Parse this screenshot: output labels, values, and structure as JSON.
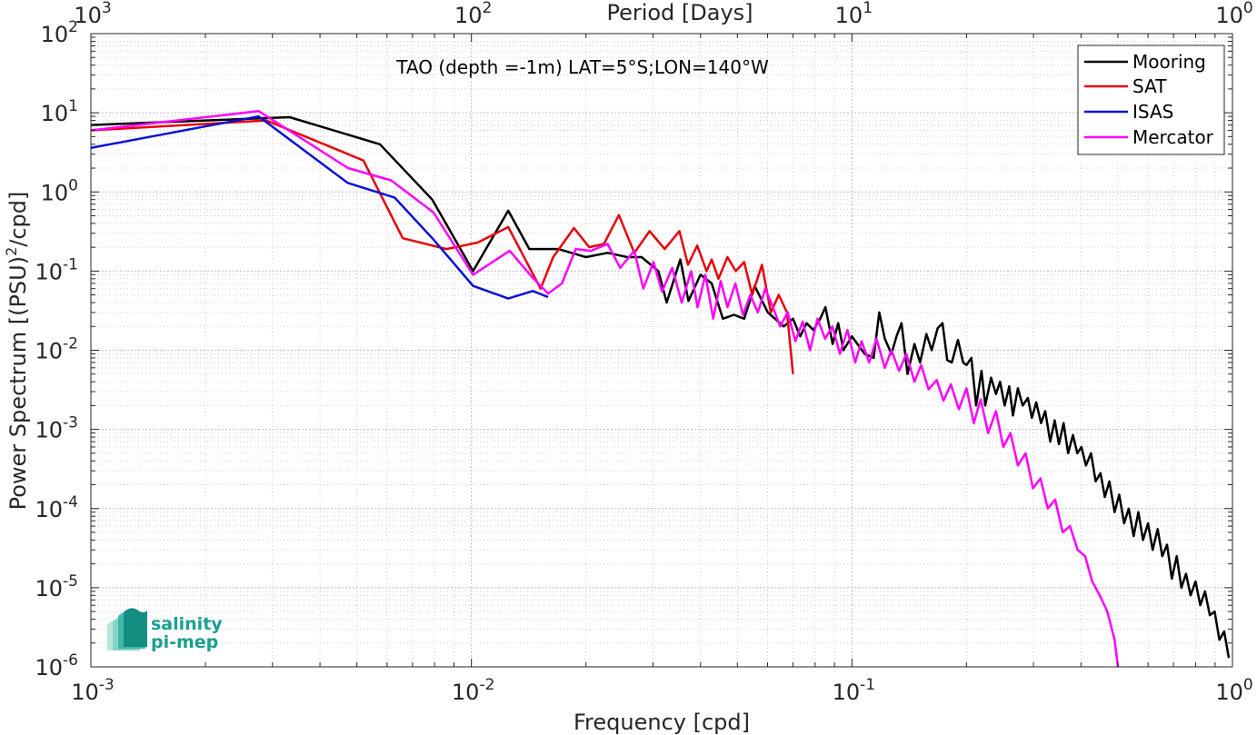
{
  "chart_data": {
    "type": "line",
    "title": "",
    "annotation": "TAO (depth =-1m) LAT=5°S;LON=140°W",
    "xlabel": "Frequency [cpd]",
    "ylabel": "Power Spectrum [(PSU)²/cpd]",
    "ylabel_parts": {
      "pre": "Power Spectrum [(PSU)",
      "sup": "2",
      "post": "/cpd]"
    },
    "top_xlabel": "Period [Days]",
    "xscale": "log",
    "yscale": "log",
    "xlim": [
      0.001,
      1
    ],
    "ylim": [
      1e-06,
      100
    ],
    "grid": true,
    "legend_position": "top-right",
    "x_ticks": [
      {
        "value": 0.001,
        "base": "10",
        "exp": "-3"
      },
      {
        "value": 0.01,
        "base": "10",
        "exp": "-2"
      },
      {
        "value": 0.1,
        "base": "10",
        "exp": "-1"
      },
      {
        "value": 1,
        "base": "10",
        "exp": "0"
      }
    ],
    "y_ticks": [
      {
        "value": 1e-06,
        "base": "10",
        "exp": "-6"
      },
      {
        "value": 1e-05,
        "base": "10",
        "exp": "-5"
      },
      {
        "value": 0.0001,
        "base": "10",
        "exp": "-4"
      },
      {
        "value": 0.001,
        "base": "10",
        "exp": "-3"
      },
      {
        "value": 0.01,
        "base": "10",
        "exp": "-2"
      },
      {
        "value": 0.1,
        "base": "10",
        "exp": "-1"
      },
      {
        "value": 1,
        "base": "10",
        "exp": "0"
      },
      {
        "value": 10,
        "base": "10",
        "exp": "1"
      },
      {
        "value": 100,
        "base": "10",
        "exp": "2"
      }
    ],
    "top_ticks": [
      {
        "period": 1000,
        "base": "10",
        "exp": "3"
      },
      {
        "period": 100,
        "base": "10",
        "exp": "2"
      },
      {
        "period": 10,
        "base": "10",
        "exp": "1"
      },
      {
        "period": 1,
        "base": "10",
        "exp": "0"
      }
    ],
    "series": [
      {
        "name": "Mooring",
        "color": "#000000",
        "x": [
          0.001,
          0.00333,
          0.00575,
          0.00789,
          0.0101,
          0.0125,
          0.0142,
          0.0169,
          0.02,
          0.0228,
          0.0257,
          0.028,
          0.031,
          0.0326,
          0.0354,
          0.0372,
          0.04,
          0.0428,
          0.0458,
          0.049,
          0.0521,
          0.0555,
          0.0601,
          0.0662,
          0.07,
          0.0731,
          0.076,
          0.0792,
          0.0825,
          0.0852,
          0.089,
          0.092,
          0.095,
          0.1,
          0.108,
          0.114,
          0.118,
          0.122,
          0.127,
          0.131,
          0.135,
          0.14,
          0.146,
          0.151,
          0.157,
          0.162,
          0.168,
          0.173,
          0.178,
          0.183,
          0.19,
          0.196,
          0.2,
          0.206,
          0.212,
          0.219,
          0.224,
          0.232,
          0.239,
          0.245,
          0.252,
          0.259,
          0.265,
          0.273,
          0.281,
          0.29,
          0.297,
          0.305,
          0.314,
          0.322,
          0.332,
          0.341,
          0.35,
          0.36,
          0.37,
          0.381,
          0.391,
          0.401,
          0.412,
          0.425,
          0.437,
          0.45,
          0.462,
          0.475,
          0.49,
          0.504,
          0.519,
          0.534,
          0.55,
          0.566,
          0.582,
          0.6,
          0.617,
          0.636,
          0.654,
          0.673,
          0.693,
          0.714,
          0.734,
          0.755,
          0.776,
          0.8,
          0.823,
          0.847,
          0.872,
          0.898,
          0.924,
          0.951,
          0.978
        ],
        "y": [
          7.0,
          8.8,
          4.0,
          0.8,
          0.1,
          0.58,
          0.19,
          0.19,
          0.15,
          0.17,
          0.15,
          0.15,
          0.1,
          0.04,
          0.14,
          0.042,
          0.09,
          0.07,
          0.025,
          0.028,
          0.025,
          0.065,
          0.03,
          0.02,
          0.025,
          0.015,
          0.022,
          0.018,
          0.025,
          0.035,
          0.012,
          0.022,
          0.01,
          0.015,
          0.009,
          0.008,
          0.03,
          0.014,
          0.009,
          0.015,
          0.022,
          0.005,
          0.012,
          0.007,
          0.016,
          0.01,
          0.019,
          0.022,
          0.0075,
          0.007,
          0.0135,
          0.007,
          0.0065,
          0.008,
          0.002,
          0.0055,
          0.002,
          0.0045,
          0.0028,
          0.004,
          0.002,
          0.0035,
          0.0015,
          0.0033,
          0.002,
          0.0025,
          0.0014,
          0.0022,
          0.0012,
          0.0017,
          0.0007,
          0.0013,
          0.00065,
          0.0012,
          0.0005,
          0.00085,
          0.0005,
          0.0006,
          0.00035,
          0.0005,
          0.00022,
          0.00028,
          0.00014,
          0.00022,
          9e-05,
          0.00015,
          6.5e-05,
          0.0001,
          4.5e-05,
          9e-05,
          4e-05,
          6.5e-05,
          3e-05,
          5.5e-05,
          2.5e-05,
          3.5e-05,
          1.3e-05,
          2.5e-05,
          1e-05,
          1.5e-05,
          8e-06,
          1.2e-05,
          6e-06,
          9e-06,
          4.5e-06,
          5e-06,
          2.2e-06,
          2.8e-06,
          1.3e-06
        ]
      },
      {
        "name": "SAT",
        "color": "#e8000b",
        "x": [
          0.001,
          0.00289,
          0.0052,
          0.0066,
          0.0086,
          0.0104,
          0.0125,
          0.0152,
          0.0164,
          0.0186,
          0.0204,
          0.0223,
          0.0244,
          0.0268,
          0.0294,
          0.0322,
          0.0352,
          0.0371,
          0.0392,
          0.0415,
          0.0428,
          0.0446,
          0.0471,
          0.0495,
          0.0521,
          0.0547,
          0.058,
          0.0612,
          0.0642,
          0.0675,
          0.07
        ],
        "y": [
          6.0,
          8.0,
          2.5,
          0.26,
          0.19,
          0.23,
          0.36,
          0.06,
          0.15,
          0.35,
          0.2,
          0.22,
          0.51,
          0.17,
          0.32,
          0.19,
          0.32,
          0.12,
          0.21,
          0.1,
          0.14,
          0.08,
          0.15,
          0.1,
          0.13,
          0.05,
          0.12,
          0.03,
          0.05,
          0.03,
          0.005
        ]
      },
      {
        "name": "ISAS",
        "color": "#0a10d8",
        "x": [
          0.001,
          0.00276,
          0.00473,
          0.00628,
          0.00795,
          0.0101,
          0.0125,
          0.0145,
          0.0159
        ],
        "y": [
          3.6,
          9.0,
          1.3,
          0.85,
          0.25,
          0.065,
          0.045,
          0.056,
          0.047
        ]
      },
      {
        "name": "Mercator",
        "color": "#ff00ff",
        "x": [
          0.001,
          0.00276,
          0.00474,
          0.00615,
          0.00795,
          0.0101,
          0.0126,
          0.0144,
          0.0159,
          0.0173,
          0.0188,
          0.0206,
          0.0228,
          0.0246,
          0.0268,
          0.0283,
          0.0301,
          0.0317,
          0.0337,
          0.0357,
          0.0378,
          0.0393,
          0.0412,
          0.0432,
          0.0452,
          0.0471,
          0.0494,
          0.0517,
          0.0541,
          0.0566,
          0.0592,
          0.062,
          0.0648,
          0.0678,
          0.071,
          0.0742,
          0.0776,
          0.0812,
          0.085,
          0.0889,
          0.093,
          0.0973,
          0.102,
          0.106,
          0.111,
          0.116,
          0.122,
          0.127,
          0.133,
          0.139,
          0.146,
          0.152,
          0.159,
          0.167,
          0.174,
          0.182,
          0.191,
          0.2,
          0.209,
          0.218,
          0.228,
          0.239,
          0.25,
          0.261,
          0.273,
          0.286,
          0.299,
          0.313,
          0.327,
          0.342,
          0.358,
          0.374,
          0.392,
          0.41,
          0.428,
          0.448,
          0.469,
          0.49,
          0.5
        ],
        "y": [
          6.0,
          10.5,
          2.0,
          1.4,
          0.55,
          0.09,
          0.18,
          0.085,
          0.052,
          0.07,
          0.19,
          0.18,
          0.22,
          0.11,
          0.18,
          0.06,
          0.13,
          0.055,
          0.11,
          0.04,
          0.1,
          0.035,
          0.09,
          0.025,
          0.075,
          0.035,
          0.07,
          0.028,
          0.05,
          0.03,
          0.06,
          0.035,
          0.02,
          0.03,
          0.013,
          0.023,
          0.01,
          0.025,
          0.014,
          0.02,
          0.009,
          0.018,
          0.007,
          0.013,
          0.007,
          0.014,
          0.006,
          0.01,
          0.0055,
          0.009,
          0.004,
          0.0065,
          0.0032,
          0.0042,
          0.0023,
          0.0037,
          0.0018,
          0.0033,
          0.0012,
          0.0024,
          0.0009,
          0.0017,
          0.0006,
          0.0009,
          0.00035,
          0.0005,
          0.00018,
          0.00024,
          0.0001,
          0.00013,
          5e-05,
          6e-05,
          3e-05,
          2.5e-05,
          1.2e-05,
          8e-06,
          5e-06,
          2.2e-06,
          1e-06
        ]
      }
    ]
  },
  "logo": {
    "line1": "salinity",
    "line2": "pi-mep"
  }
}
